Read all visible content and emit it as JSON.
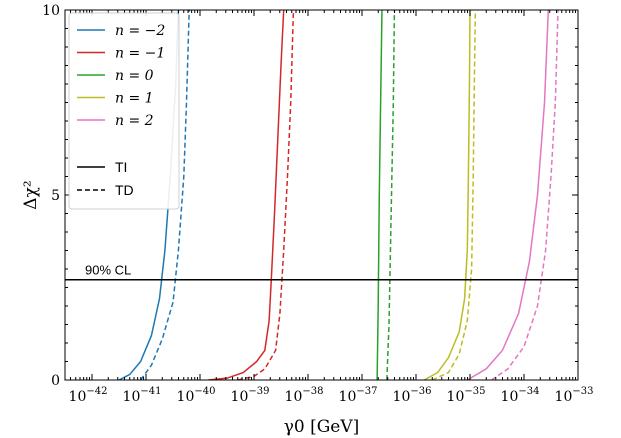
{
  "chart_data": {
    "type": "line",
    "x_scale": "log",
    "xlim_exp": [
      -42.5,
      -33
    ],
    "ylim": [
      0,
      10
    ],
    "xlabel": "γ0 [GeV]",
    "ylabel": "Δχ²",
    "x_ticks": [
      {
        "exp": -42,
        "label_base": "10",
        "label_exp": "−42"
      },
      {
        "exp": -41,
        "label_base": "10",
        "label_exp": "−41"
      },
      {
        "exp": -40,
        "label_base": "10",
        "label_exp": "−40"
      },
      {
        "exp": -39,
        "label_base": "10",
        "label_exp": "−39"
      },
      {
        "exp": -38,
        "label_base": "10",
        "label_exp": "−38"
      },
      {
        "exp": -37,
        "label_base": "10",
        "label_exp": "−37"
      },
      {
        "exp": -36,
        "label_base": "10",
        "label_exp": "−36"
      },
      {
        "exp": -35,
        "label_base": "10",
        "label_exp": "−35"
      },
      {
        "exp": -34,
        "label_base": "10",
        "label_exp": "−34"
      },
      {
        "exp": -33,
        "label_base": "10",
        "label_exp": "−33"
      }
    ],
    "y_ticks": [
      {
        "value": 0,
        "label": "0"
      },
      {
        "value": 5,
        "label": "5"
      },
      {
        "value": 10,
        "label": "10"
      }
    ],
    "cl_line": {
      "value": 2.71,
      "label": "90% CL"
    },
    "legend": {
      "position": "top-left",
      "series_entries": [
        {
          "label": "n = −2",
          "color": "#1f77b4"
        },
        {
          "label": "n = −1",
          "color": "#d62728"
        },
        {
          "label": "n = 0",
          "color": "#2ca02c"
        },
        {
          "label": "n = 1",
          "color": "#bcbd22"
        },
        {
          "label": "n = 2",
          "color": "#e377c2"
        }
      ],
      "style_entries": [
        {
          "label": "TI",
          "dash": "solid"
        },
        {
          "label": "TD",
          "dash": "dashed"
        }
      ]
    },
    "series": [
      {
        "name": "n = −2",
        "color": "#1f77b4",
        "dash": "solid",
        "points": [
          [
            -41.5,
            0
          ],
          [
            -41.3,
            0.15
          ],
          [
            -41.1,
            0.5
          ],
          [
            -40.9,
            1.2
          ],
          [
            -40.75,
            2.2
          ],
          [
            -40.65,
            3.5
          ],
          [
            -40.55,
            5.5
          ],
          [
            -40.45,
            8
          ],
          [
            -40.4,
            10
          ]
        ]
      },
      {
        "name": "n = −2",
        "color": "#1f77b4",
        "dash": "dashed",
        "points": [
          [
            -41.1,
            0
          ],
          [
            -40.9,
            0.4
          ],
          [
            -40.7,
            1.1
          ],
          [
            -40.5,
            2.1
          ],
          [
            -40.4,
            3.5
          ],
          [
            -40.3,
            5.5
          ],
          [
            -40.25,
            7.5
          ],
          [
            -40.2,
            10
          ]
        ]
      },
      {
        "name": "n = −1",
        "color": "#d62728",
        "dash": "solid",
        "points": [
          [
            -39.85,
            0
          ],
          [
            -39.5,
            0.05
          ],
          [
            -39.2,
            0.2
          ],
          [
            -38.95,
            0.5
          ],
          [
            -38.8,
            0.8
          ],
          [
            -38.72,
            1.6
          ],
          [
            -38.68,
            2.7
          ],
          [
            -38.62,
            4.5
          ],
          [
            -38.56,
            6.5
          ],
          [
            -38.5,
            8.5
          ],
          [
            -38.45,
            10
          ]
        ]
      },
      {
        "name": "n = −1",
        "color": "#d62728",
        "dash": "dashed",
        "points": [
          [
            -39.3,
            0
          ],
          [
            -39.0,
            0.1
          ],
          [
            -38.8,
            0.3
          ],
          [
            -38.6,
            0.8
          ],
          [
            -38.52,
            1.8
          ],
          [
            -38.45,
            3.5
          ],
          [
            -38.38,
            5.5
          ],
          [
            -38.32,
            7.5
          ],
          [
            -38.27,
            10
          ]
        ]
      },
      {
        "name": "n = 0",
        "color": "#2ca02c",
        "dash": "solid",
        "points": [
          [
            -36.72,
            0
          ],
          [
            -36.7,
            2
          ],
          [
            -36.68,
            5
          ],
          [
            -36.65,
            8
          ],
          [
            -36.63,
            10
          ]
        ]
      },
      {
        "name": "n = 0",
        "color": "#2ca02c",
        "dash": "dashed",
        "points": [
          [
            -36.54,
            0
          ],
          [
            -36.5,
            1.5
          ],
          [
            -36.46,
            4.5
          ],
          [
            -36.42,
            7.5
          ],
          [
            -36.4,
            10
          ]
        ]
      },
      {
        "name": "n = 1",
        "color": "#bcbd22",
        "dash": "solid",
        "points": [
          [
            -35.85,
            0
          ],
          [
            -35.6,
            0.2
          ],
          [
            -35.4,
            0.6
          ],
          [
            -35.2,
            1.3
          ],
          [
            -35.1,
            2.2
          ],
          [
            -35.05,
            3.5
          ],
          [
            -35.03,
            5.5
          ],
          [
            -35.01,
            8
          ],
          [
            -35.0,
            10
          ]
        ]
      },
      {
        "name": "n = 1",
        "color": "#bcbd22",
        "dash": "dashed",
        "points": [
          [
            -35.7,
            0
          ],
          [
            -35.4,
            0.2
          ],
          [
            -35.2,
            0.7
          ],
          [
            -35.05,
            1.6
          ],
          [
            -34.97,
            3
          ],
          [
            -34.94,
            5.5
          ],
          [
            -34.92,
            8
          ],
          [
            -34.9,
            10
          ]
        ]
      },
      {
        "name": "n = 2",
        "color": "#e377c2",
        "dash": "solid",
        "points": [
          [
            -35.05,
            0
          ],
          [
            -34.7,
            0.3
          ],
          [
            -34.4,
            0.8
          ],
          [
            -34.1,
            1.8
          ],
          [
            -33.9,
            3.2
          ],
          [
            -33.75,
            5
          ],
          [
            -33.62,
            7.5
          ],
          [
            -33.55,
            10
          ]
        ]
      },
      {
        "name": "n = 2",
        "color": "#e377c2",
        "dash": "dashed",
        "points": [
          [
            -34.6,
            0
          ],
          [
            -34.3,
            0.3
          ],
          [
            -34.0,
            0.9
          ],
          [
            -33.75,
            2
          ],
          [
            -33.6,
            3.5
          ],
          [
            -33.5,
            5.5
          ],
          [
            -33.42,
            7.5
          ],
          [
            -33.37,
            10
          ]
        ]
      }
    ]
  }
}
